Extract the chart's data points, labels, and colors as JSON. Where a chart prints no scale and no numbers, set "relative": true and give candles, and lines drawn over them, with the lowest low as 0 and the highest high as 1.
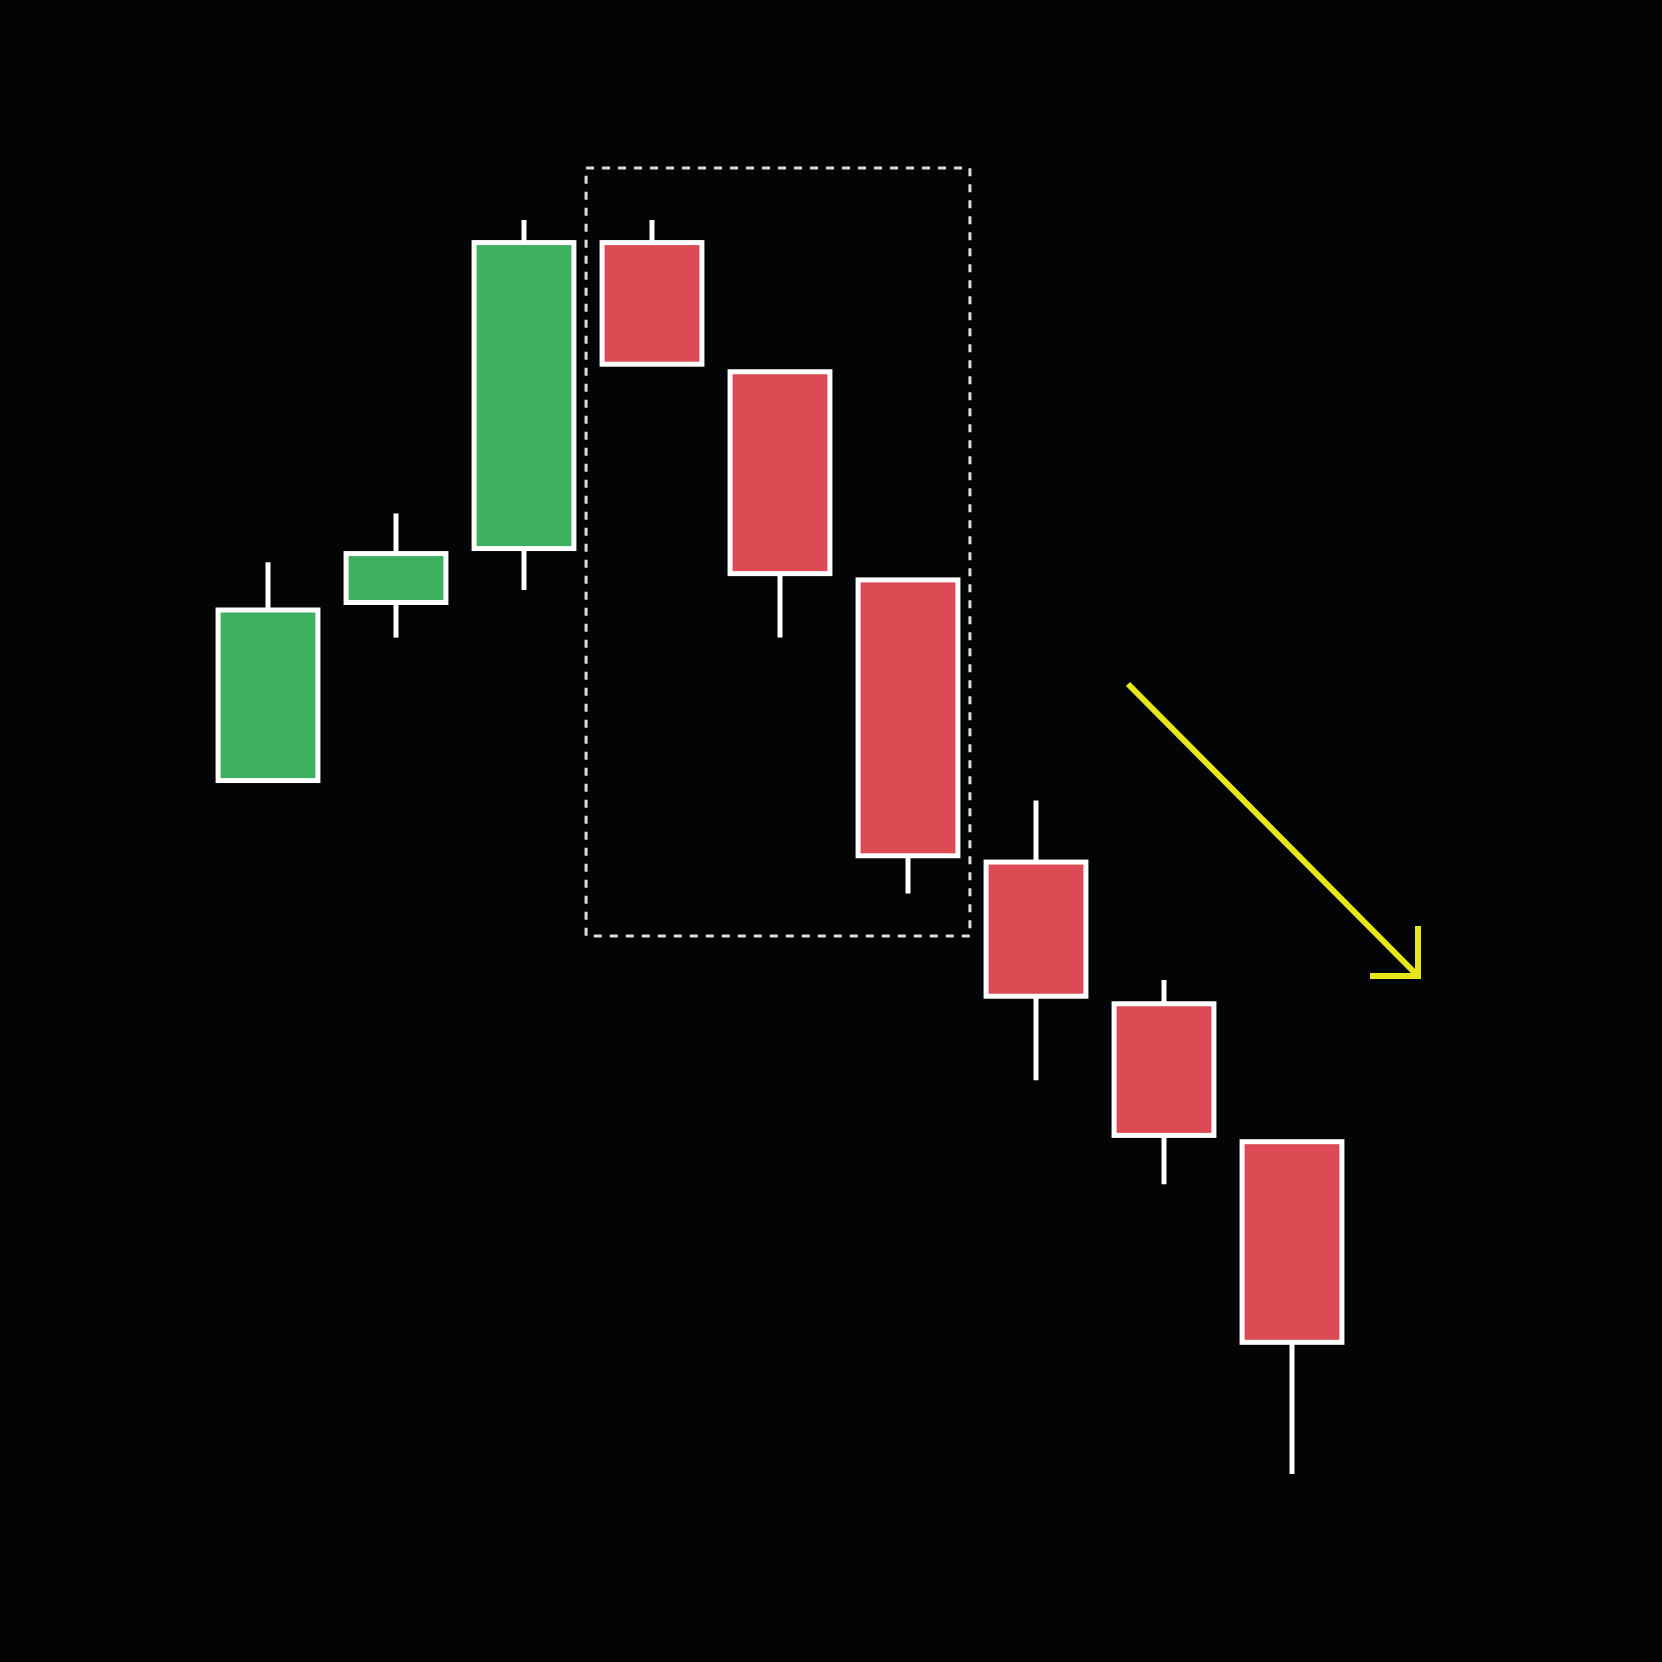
{
  "chart_data": {
    "type": "candlestick",
    "relative": true,
    "categories": [
      null,
      null,
      null,
      null,
      null,
      null,
      null,
      null,
      null
    ],
    "ohlc": [
      [
        0.553,
        0.727,
        0.553,
        0.689
      ],
      [
        0.695,
        0.766,
        0.667,
        0.734
      ],
      [
        0.738,
        1,
        0.705,
        0.982
      ],
      [
        0.982,
        1,
        0.885,
        0.885
      ],
      [
        0.879,
        0.879,
        0.667,
        0.718
      ],
      [
        0.713,
        0.713,
        0.463,
        0.493
      ],
      [
        0.488,
        0.537,
        0.314,
        0.381
      ],
      [
        0.375,
        0.394,
        0.231,
        0.27
      ],
      [
        0.265,
        0.265,
        0,
        0.105
      ]
    ],
    "colors": [
      "#3daf5f",
      "#3daf5f",
      "#3daf5f",
      "#dc4a53",
      "#dc4a53",
      "#dc4a53",
      "#dc4a53",
      "#dc4a53",
      "#dc4a53"
    ]
  }
}
